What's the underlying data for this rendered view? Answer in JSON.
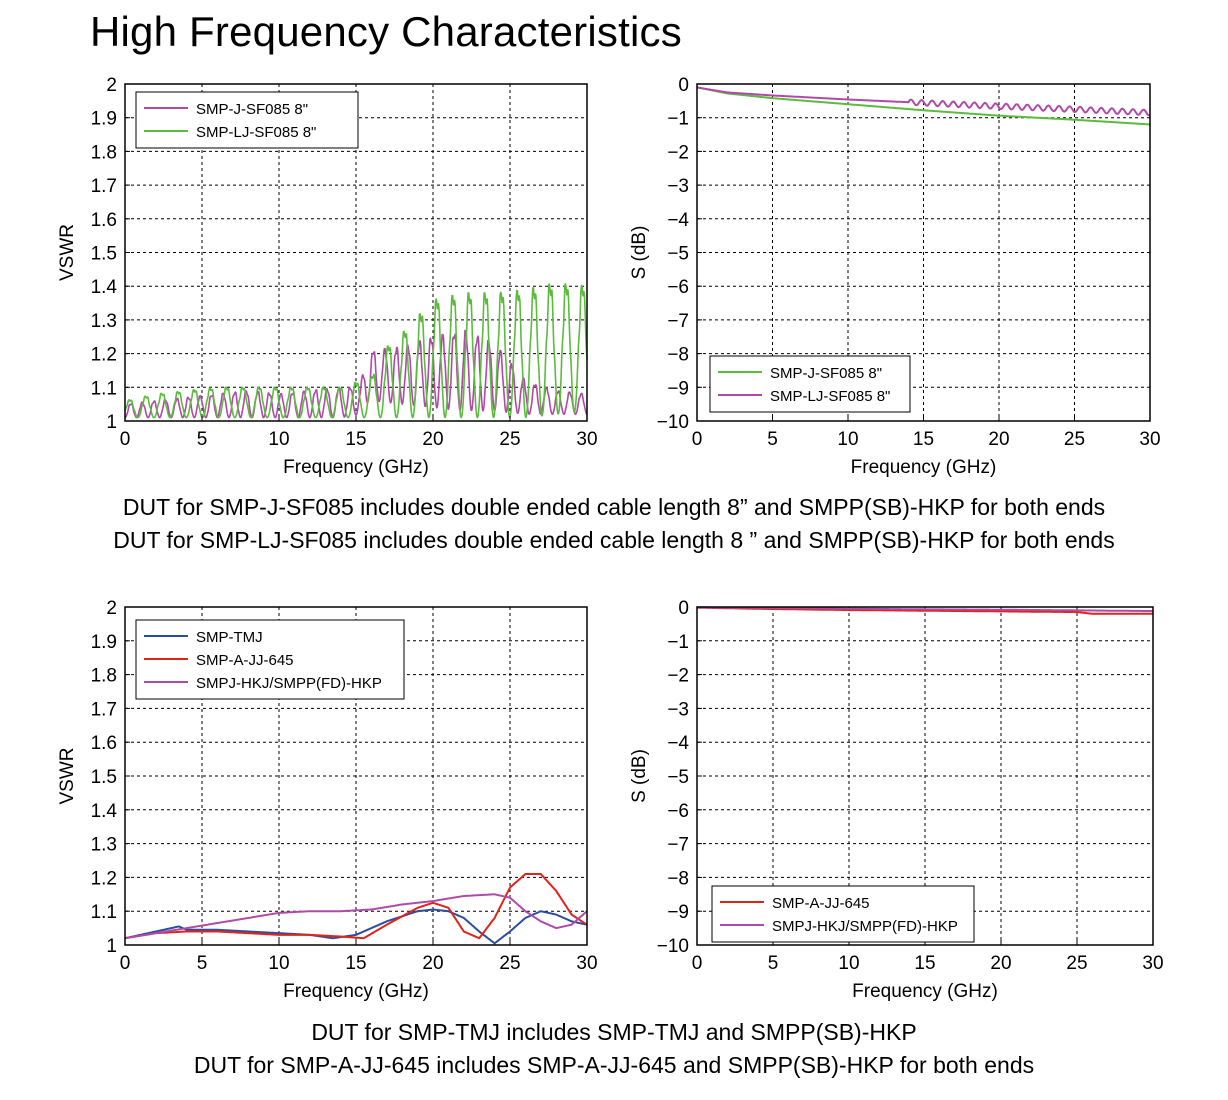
{
  "title": "High Frequency Characteristics",
  "captions": {
    "top": [
      "DUT for SMP-J-SF085 includes double ended cable length 8” and SMPP(SB)-HKP for both ends",
      "DUT for SMP-LJ-SF085 includes double ended cable length 8 ” and SMPP(SB)-HKP for both ends"
    ],
    "bottom": [
      "DUT for SMP-TMJ includes SMP-TMJ and SMPP(SB)-HKP",
      "DUT for SMP-A-JJ-645 includes SMP-A-JJ-645 and SMPP(SB)-HKP for both ends"
    ]
  },
  "colors": {
    "magenta": "#b04aa8",
    "green": "#5cbb3f",
    "blue": "#2b4ea0",
    "red": "#e0241a"
  },
  "chart_data": [
    {
      "id": "vswr-top",
      "type": "line",
      "xlabel": "Frequency (GHz)",
      "ylabel": "VSWR",
      "xlim": [
        0,
        30
      ],
      "ylim": [
        1,
        2
      ],
      "xticks": [
        0,
        5,
        10,
        15,
        20,
        25,
        30
      ],
      "yticks": [
        1,
        1.1,
        1.2,
        1.3,
        1.4,
        1.5,
        1.6,
        1.7,
        1.8,
        1.9,
        2
      ],
      "ytick_labels": [
        "1",
        "1.1",
        "1.2",
        "1.3",
        "1.4",
        "1.5",
        "1.6",
        "1.7",
        "1.8",
        "1.9",
        "2"
      ],
      "grid": true,
      "legend_position": "top-left",
      "series": [
        {
          "name": "SMP-J-SF085 8\"",
          "color": "#b04aa8",
          "x": [
            0,
            2,
            4,
            6,
            8,
            10,
            12,
            14,
            15.3,
            15.6,
            16,
            18,
            20,
            22,
            24,
            26,
            28,
            30
          ],
          "env_low": [
            1.01,
            1.01,
            1.01,
            1.01,
            1.01,
            1.01,
            1.01,
            1.01,
            1.02,
            1.05,
            1.06,
            1.05,
            1.04,
            1.03,
            1.03,
            1.02,
            1.02,
            1.02
          ],
          "env_high": [
            1.05,
            1.06,
            1.07,
            1.08,
            1.09,
            1.08,
            1.09,
            1.1,
            1.1,
            1.2,
            1.21,
            1.22,
            1.25,
            1.27,
            1.23,
            1.12,
            1.09,
            1.08
          ],
          "period_ghz": 0.75
        },
        {
          "name": "SMP-LJ-SF085 8\"",
          "color": "#5cbb3f",
          "x": [
            0,
            2,
            4,
            6,
            8,
            10,
            12,
            14,
            16,
            17,
            18,
            19,
            20,
            22,
            24,
            26,
            28,
            30
          ],
          "env_low": [
            1.01,
            1.01,
            1.01,
            1.01,
            1.01,
            1.01,
            1.01,
            1.01,
            1.01,
            1.01,
            1.01,
            1.01,
            1.01,
            1.01,
            1.01,
            1.01,
            1.02,
            1.03
          ],
          "env_high": [
            1.06,
            1.08,
            1.09,
            1.1,
            1.1,
            1.1,
            1.1,
            1.1,
            1.13,
            1.22,
            1.26,
            1.31,
            1.36,
            1.38,
            1.38,
            1.39,
            1.41,
            1.4
          ],
          "period_ghz": 1.05
        }
      ]
    },
    {
      "id": "s-top",
      "type": "line",
      "xlabel": "Frequency (GHz)",
      "ylabel": "S (dB)",
      "xlim": [
        0,
        30
      ],
      "ylim": [
        -10,
        0
      ],
      "xticks": [
        0,
        5,
        10,
        15,
        20,
        25,
        30
      ],
      "yticks": [
        -10,
        -9,
        -8,
        -7,
        -6,
        -5,
        -4,
        -3,
        -2,
        -1,
        0
      ],
      "ytick_labels": [
        "−10",
        "−9",
        "−8",
        "−7",
        "−6",
        "−5",
        "−4",
        "−3",
        "−2",
        "−1",
        "0"
      ],
      "grid": true,
      "legend_position": "bottom-left",
      "series": [
        {
          "name": "SMP-J-SF085 8\"",
          "color": "#5cbb3f",
          "x": [
            0,
            2,
            5,
            10,
            15,
            20,
            25,
            30
          ],
          "y": [
            -0.1,
            -0.28,
            -0.42,
            -0.6,
            -0.78,
            -0.94,
            -1.06,
            -1.2
          ]
        },
        {
          "name": "SMP-LJ-SF085 8\"",
          "color": "#b04aa8",
          "x": [
            0,
            2,
            5,
            10,
            15,
            20,
            25,
            30
          ],
          "y": [
            -0.1,
            -0.25,
            -0.34,
            -0.46,
            -0.56,
            -0.66,
            -0.75,
            -0.85
          ],
          "ripple_from_ghz": 14,
          "ripple_amp_db": 0.08
        }
      ]
    },
    {
      "id": "vswr-bottom",
      "type": "line",
      "xlabel": "Frequency (GHz)",
      "ylabel": "VSWR",
      "xlim": [
        0,
        30
      ],
      "ylim": [
        1,
        2
      ],
      "xticks": [
        0,
        5,
        10,
        15,
        20,
        25,
        30
      ],
      "yticks": [
        1,
        1.1,
        1.2,
        1.3,
        1.4,
        1.5,
        1.6,
        1.7,
        1.8,
        1.9,
        2
      ],
      "ytick_labels": [
        "1",
        "1.1",
        "1.2",
        "1.3",
        "1.4",
        "1.5",
        "1.6",
        "1.7",
        "1.8",
        "1.9",
        "2"
      ],
      "grid": true,
      "legend_position": "top-left",
      "series": [
        {
          "name": "SMP-TMJ",
          "color": "#2b4ea0",
          "x": [
            0,
            2,
            3.5,
            4,
            6,
            8,
            10,
            12,
            13.5,
            15,
            17,
            19,
            20,
            21,
            22,
            23,
            24,
            25,
            26,
            27,
            28,
            29,
            30
          ],
          "y": [
            1.02,
            1.04,
            1.055,
            1.045,
            1.045,
            1.04,
            1.035,
            1.03,
            1.02,
            1.03,
            1.07,
            1.1,
            1.105,
            1.1,
            1.08,
            1.04,
            1.005,
            1.04,
            1.08,
            1.1,
            1.09,
            1.07,
            1.06
          ]
        },
        {
          "name": "SMP-A-JJ-645",
          "color": "#e0241a",
          "x": [
            0,
            2,
            4,
            6,
            8,
            10,
            12,
            14,
            15.5,
            17,
            19,
            20,
            21,
            22,
            23,
            24,
            25,
            26,
            27,
            28,
            29,
            30
          ],
          "y": [
            1.02,
            1.035,
            1.04,
            1.04,
            1.035,
            1.03,
            1.03,
            1.025,
            1.02,
            1.06,
            1.11,
            1.125,
            1.11,
            1.04,
            1.02,
            1.08,
            1.17,
            1.21,
            1.21,
            1.16,
            1.09,
            1.06
          ]
        },
        {
          "name": "SMPJ-HKJ/SMPP(FD)-HKP",
          "color": "#b04aa8",
          "x": [
            0,
            2,
            4,
            6,
            8,
            10,
            12,
            14,
            16,
            18,
            20,
            22,
            24,
            25,
            26,
            27,
            28,
            29,
            30
          ],
          "y": [
            1.02,
            1.035,
            1.05,
            1.065,
            1.08,
            1.095,
            1.1,
            1.1,
            1.105,
            1.12,
            1.13,
            1.145,
            1.15,
            1.14,
            1.1,
            1.07,
            1.05,
            1.06,
            1.1
          ]
        }
      ]
    },
    {
      "id": "s-bottom",
      "type": "line",
      "xlabel": "Frequency (GHz)",
      "ylabel": "S (dB)",
      "xlim": [
        0,
        30
      ],
      "ylim": [
        -10,
        0
      ],
      "xticks": [
        0,
        5,
        10,
        15,
        20,
        25,
        30
      ],
      "yticks": [
        -10,
        -9,
        -8,
        -7,
        -6,
        -5,
        -4,
        -3,
        -2,
        -1,
        0
      ],
      "ytick_labels": [
        "−10",
        "−9",
        "−8",
        "−7",
        "−6",
        "−5",
        "−4",
        "−3",
        "−2",
        "−1",
        "0"
      ],
      "grid": true,
      "legend_position": "bottom-left",
      "series": [
        {
          "name": "SMP-A-JJ-645",
          "color": "#e0241a",
          "x": [
            0,
            5,
            10,
            15,
            20,
            25,
            26,
            30
          ],
          "y": [
            -0.02,
            -0.06,
            -0.09,
            -0.11,
            -0.13,
            -0.15,
            -0.2,
            -0.2
          ]
        },
        {
          "name": "SMPJ-HKJ/SMPP(FD)-HKP",
          "color": "#b04aa8",
          "x": [
            0,
            5,
            10,
            15,
            20,
            25,
            30
          ],
          "y": [
            -0.01,
            -0.03,
            -0.05,
            -0.07,
            -0.08,
            -0.1,
            -0.12
          ]
        }
      ]
    }
  ]
}
